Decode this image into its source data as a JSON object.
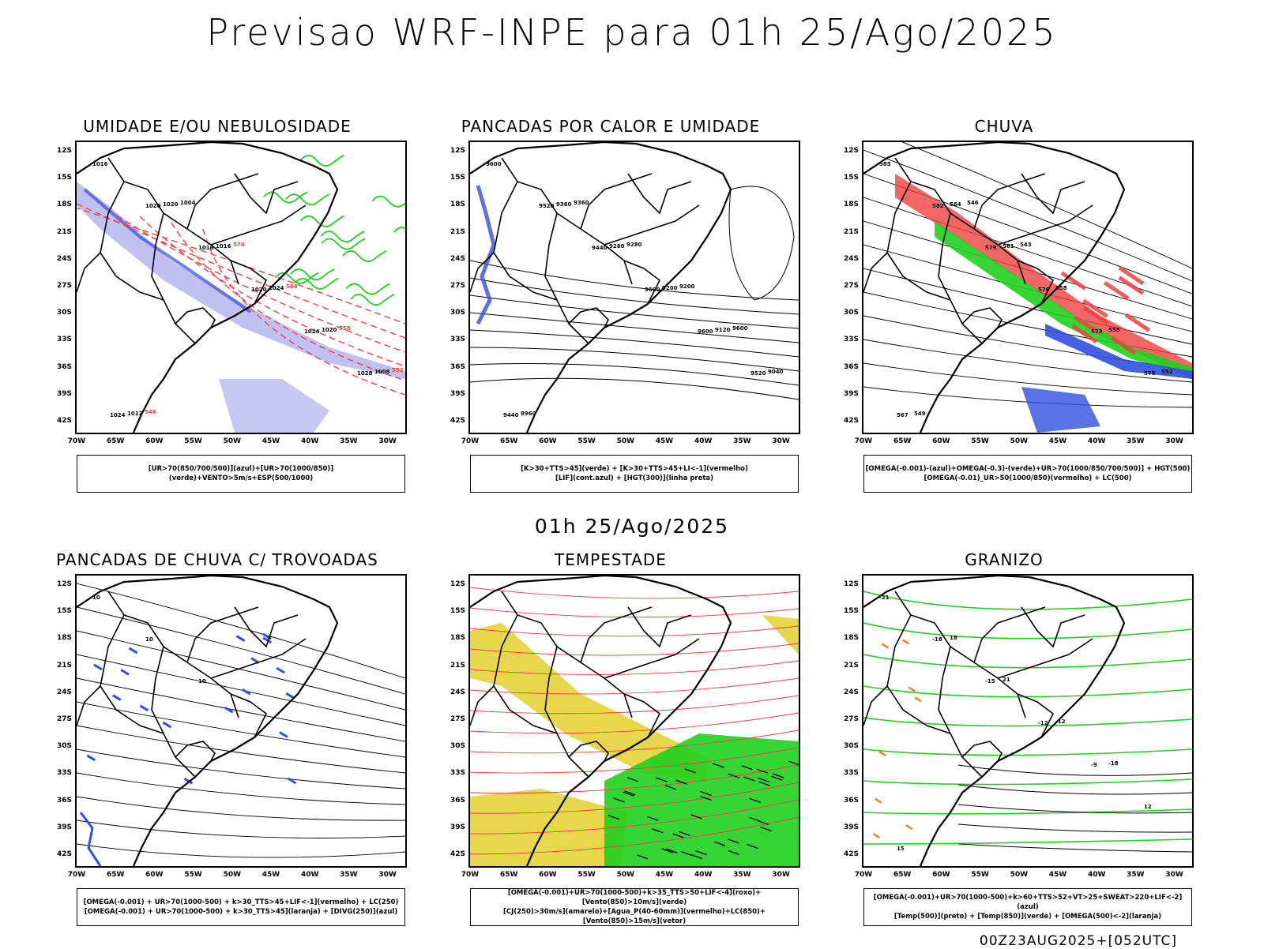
{
  "header": {
    "title": "Previsao WRF-INPE  para 01h 25/Ago/2025",
    "mid_time": "01h 25/Ago/2025",
    "run_label": "00Z23AUG2025+[052UTC]"
  },
  "axes": {
    "lat_labels": [
      "12S",
      "15S",
      "18S",
      "21S",
      "24S",
      "27S",
      "30S",
      "33S",
      "36S",
      "39S",
      "42S"
    ],
    "lon_labels": [
      "70W",
      "65W",
      "60W",
      "55W",
      "50W",
      "45W",
      "40W",
      "35W",
      "30W"
    ]
  },
  "colors": {
    "blue": "#3050e0",
    "green": "#20d020",
    "red": "#f04040",
    "yellow": "#e6d23a",
    "lavender": "#b0b0ee",
    "orange": "#f08020"
  },
  "panels": [
    {
      "title": "UMIDADE E/OU NEBULOSIDADE",
      "legend": [
        "[UR>70(850/700/500)](azul)+[UR>70(1000/850)](verde)+VENTO>5m/s+ESP(500/1000)"
      ],
      "contour_labels": [
        "1016",
        "1020",
        "1016",
        "1020",
        "1024",
        "1028",
        "1024",
        "1020",
        "1016",
        "1024",
        "1020",
        "1008",
        "1012",
        "1004",
        "570",
        "564",
        "558",
        "552",
        "546"
      ]
    },
    {
      "title": "PANCADAS POR CALOR E UMIDADE",
      "legend": [
        "[K>30+TTS>45](verde) + [K>30+TTS>45+LI<-1](vermelho)",
        "[LIF](cont.azul) + [HGT(300)](linha preta)"
      ],
      "contour_labels": [
        "9600",
        "9520",
        "9440",
        "9600",
        "9600",
        "9520",
        "9440",
        "9360",
        "9280",
        "9200",
        "9120",
        "9040",
        "8960",
        "9360",
        "9280",
        "9200",
        "9600"
      ]
    },
    {
      "title": "CHUVA",
      "legend": [
        "[OMEGA(-0.001)-(azul)+OMEGA(-0.3)-(verde)+UR>70(1000/850/700/500)] + HGT(500)",
        "[OMEGA(-0.01)_UR>50(1000/850)(vermelho) + LC(500)"
      ],
      "contour_labels": [
        "585",
        "582",
        "579",
        "576",
        "573",
        "570",
        "567",
        "564",
        "561",
        "558",
        "555",
        "552",
        "549",
        "546",
        "543"
      ]
    },
    {
      "title": "PANCADAS DE CHUVA C/ TROVOADAS",
      "legend": [
        "[OMEGA(-0.001) + UR>70(1000-500) + k>30_TTS>45+LIF<-1](vermelho) + LC(250)",
        "[OMEGA(-0.001) + UR>70(1000-500) + k>30_TTS>45](laranja) + [DIVG(250)](azul)"
      ],
      "contour_labels": [
        "10",
        "10",
        "10"
      ]
    },
    {
      "title": "TEMPESTADE",
      "legend": [
        "[OMEGA(-0.001)+UR>70(1000-500)+k>35_TTS>50+LIF<-4](roxo)+[Vento(850)>10m/s](verde)",
        "[CJ(250)>30m/s](amarelo)+[Agua_P(40-60mm)](vermelho)+LC(850)+[Vento(850)>15m/s](vetor)"
      ],
      "contour_labels": []
    },
    {
      "title": "GRANIZO",
      "legend": [
        "[OMEGA(-0.001)+UR>70(1000-500)+k>60+TTS>52+VT>25+SWEAT>220+LIF<-2](azul)",
        "[Temp(500)](preto) + [Temp(850)](verde) + [OMEGA(500)<-2](laranja)"
      ],
      "contour_labels": [
        "-21",
        "-18",
        "-15",
        "-12",
        "-9",
        "12",
        "15",
        "18",
        "21",
        "-12",
        "-18"
      ]
    }
  ]
}
